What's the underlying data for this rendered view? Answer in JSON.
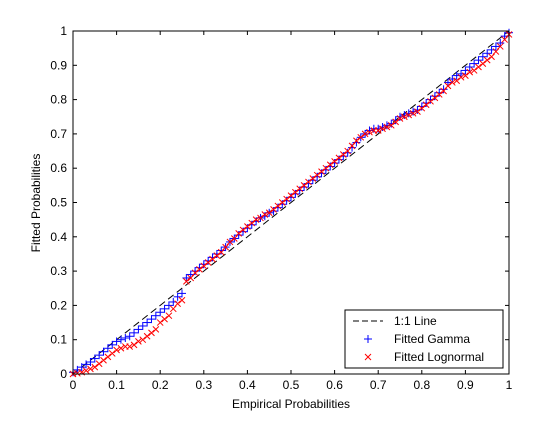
{
  "chart_data": {
    "type": "scatter",
    "title": "",
    "xlabel": "Empirical Probabilities",
    "ylabel": "Fitted Probabilities",
    "xlim": [
      0,
      1
    ],
    "ylim": [
      0,
      1
    ],
    "xticks": [
      "0",
      "0.1",
      "0.2",
      "0.3",
      "0.4",
      "0.5",
      "0.6",
      "0.7",
      "0.8",
      "0.9",
      "1"
    ],
    "yticks": [
      "0",
      "0.1",
      "0.2",
      "0.3",
      "0.4",
      "0.5",
      "0.6",
      "0.7",
      "0.8",
      "0.9",
      "1"
    ],
    "grid": false,
    "legend_position": "bottom-right",
    "series": [
      {
        "name": "1:1 Line",
        "style": "dashed-line",
        "color": "#000000",
        "x": [
          0,
          1
        ],
        "y": [
          0,
          1
        ]
      },
      {
        "name": "Fitted Gamma",
        "style": "plus-marker",
        "color": "#0000ff",
        "x": [
          0.0,
          0.01,
          0.02,
          0.03,
          0.04,
          0.05,
          0.06,
          0.07,
          0.08,
          0.09,
          0.1,
          0.11,
          0.12,
          0.13,
          0.14,
          0.15,
          0.16,
          0.17,
          0.18,
          0.19,
          0.2,
          0.21,
          0.22,
          0.23,
          0.24,
          0.25,
          0.26,
          0.27,
          0.28,
          0.29,
          0.3,
          0.31,
          0.32,
          0.33,
          0.34,
          0.35,
          0.36,
          0.37,
          0.38,
          0.39,
          0.4,
          0.41,
          0.42,
          0.43,
          0.44,
          0.45,
          0.46,
          0.47,
          0.48,
          0.49,
          0.5,
          0.51,
          0.52,
          0.53,
          0.54,
          0.55,
          0.56,
          0.57,
          0.58,
          0.59,
          0.6,
          0.61,
          0.62,
          0.63,
          0.64,
          0.65,
          0.66,
          0.67,
          0.68,
          0.69,
          0.7,
          0.71,
          0.72,
          0.73,
          0.74,
          0.75,
          0.76,
          0.77,
          0.78,
          0.79,
          0.8,
          0.81,
          0.82,
          0.83,
          0.84,
          0.85,
          0.86,
          0.87,
          0.88,
          0.89,
          0.9,
          0.91,
          0.92,
          0.93,
          0.94,
          0.95,
          0.96,
          0.97,
          0.98,
          0.99,
          1.0
        ],
        "y": [
          0.005,
          0.012,
          0.02,
          0.028,
          0.035,
          0.045,
          0.055,
          0.065,
          0.075,
          0.085,
          0.095,
          0.1,
          0.105,
          0.11,
          0.12,
          0.13,
          0.14,
          0.15,
          0.16,
          0.17,
          0.18,
          0.19,
          0.2,
          0.21,
          0.225,
          0.235,
          0.28,
          0.29,
          0.3,
          0.31,
          0.32,
          0.33,
          0.34,
          0.35,
          0.36,
          0.37,
          0.385,
          0.395,
          0.405,
          0.415,
          0.425,
          0.435,
          0.445,
          0.455,
          0.46,
          0.47,
          0.475,
          0.485,
          0.495,
          0.505,
          0.515,
          0.525,
          0.535,
          0.545,
          0.555,
          0.565,
          0.575,
          0.585,
          0.595,
          0.605,
          0.615,
          0.625,
          0.635,
          0.645,
          0.66,
          0.675,
          0.69,
          0.7,
          0.71,
          0.715,
          0.715,
          0.72,
          0.725,
          0.73,
          0.74,
          0.75,
          0.755,
          0.76,
          0.765,
          0.77,
          0.78,
          0.79,
          0.8,
          0.81,
          0.82,
          0.83,
          0.85,
          0.86,
          0.87,
          0.875,
          0.885,
          0.895,
          0.905,
          0.915,
          0.925,
          0.935,
          0.945,
          0.955,
          0.965,
          0.985,
          0.995
        ]
      },
      {
        "name": "Fitted Lognormal",
        "style": "x-marker",
        "color": "#ff0000",
        "x": [
          0.0,
          0.01,
          0.02,
          0.03,
          0.04,
          0.05,
          0.06,
          0.07,
          0.08,
          0.09,
          0.1,
          0.11,
          0.12,
          0.13,
          0.14,
          0.15,
          0.16,
          0.17,
          0.18,
          0.19,
          0.2,
          0.21,
          0.22,
          0.23,
          0.24,
          0.25,
          0.26,
          0.27,
          0.28,
          0.29,
          0.3,
          0.31,
          0.32,
          0.33,
          0.34,
          0.35,
          0.36,
          0.37,
          0.38,
          0.39,
          0.4,
          0.41,
          0.42,
          0.43,
          0.44,
          0.45,
          0.46,
          0.47,
          0.48,
          0.49,
          0.5,
          0.51,
          0.52,
          0.53,
          0.54,
          0.55,
          0.56,
          0.57,
          0.58,
          0.59,
          0.6,
          0.61,
          0.62,
          0.63,
          0.64,
          0.65,
          0.66,
          0.67,
          0.68,
          0.69,
          0.7,
          0.71,
          0.72,
          0.73,
          0.74,
          0.75,
          0.76,
          0.77,
          0.78,
          0.79,
          0.8,
          0.81,
          0.82,
          0.83,
          0.84,
          0.85,
          0.86,
          0.87,
          0.88,
          0.89,
          0.9,
          0.91,
          0.92,
          0.93,
          0.94,
          0.95,
          0.96,
          0.97,
          0.98,
          0.99,
          1.0
        ],
        "y": [
          0.0,
          0.002,
          0.005,
          0.01,
          0.015,
          0.02,
          0.03,
          0.04,
          0.05,
          0.06,
          0.07,
          0.075,
          0.08,
          0.08,
          0.085,
          0.095,
          0.1,
          0.11,
          0.12,
          0.13,
          0.15,
          0.16,
          0.17,
          0.19,
          0.205,
          0.215,
          0.27,
          0.28,
          0.295,
          0.305,
          0.315,
          0.325,
          0.335,
          0.345,
          0.355,
          0.37,
          0.385,
          0.395,
          0.41,
          0.42,
          0.43,
          0.44,
          0.45,
          0.455,
          0.465,
          0.47,
          0.48,
          0.49,
          0.5,
          0.51,
          0.52,
          0.53,
          0.54,
          0.55,
          0.56,
          0.57,
          0.58,
          0.59,
          0.6,
          0.61,
          0.62,
          0.63,
          0.64,
          0.65,
          0.665,
          0.68,
          0.69,
          0.7,
          0.705,
          0.71,
          0.71,
          0.715,
          0.72,
          0.725,
          0.735,
          0.745,
          0.75,
          0.755,
          0.76,
          0.765,
          0.775,
          0.785,
          0.795,
          0.805,
          0.815,
          0.825,
          0.84,
          0.85,
          0.855,
          0.865,
          0.87,
          0.88,
          0.885,
          0.895,
          0.905,
          0.915,
          0.925,
          0.94,
          0.955,
          0.975,
          0.99
        ]
      }
    ]
  }
}
